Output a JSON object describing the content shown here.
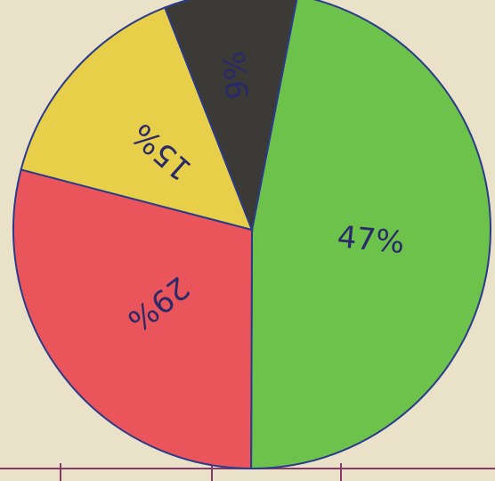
{
  "chart_data": {
    "type": "pie",
    "categories": [
      null,
      null,
      null,
      null
    ],
    "values": [
      47,
      29,
      15,
      9
    ],
    "value_labels": [
      "47%",
      "29%",
      "15%",
      "9%"
    ],
    "colors": [
      "#6cc24a",
      "#e9555a",
      "#e8cf4a",
      "#3b3a36"
    ]
  }
}
